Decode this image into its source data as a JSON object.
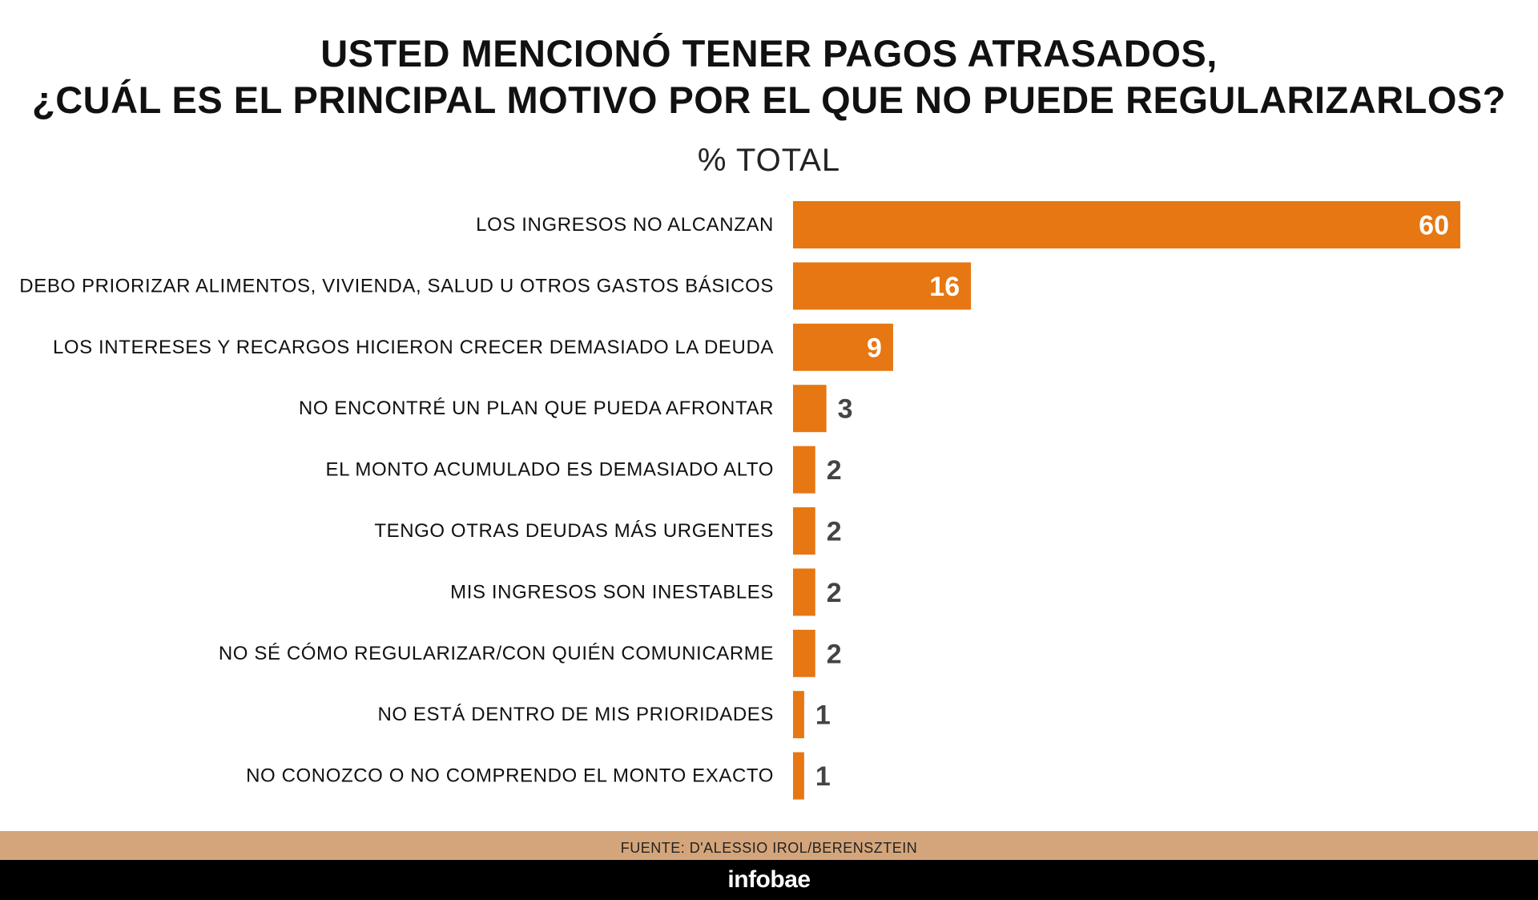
{
  "header": {
    "title_line1": "USTED MENCIONÓ TENER PAGOS ATRASADOS,",
    "title_line2": "¿CUÁL ES EL PRINCIPAL MOTIVO POR EL QUE NO PUEDE REGULARIZARLOS?",
    "subtitle": "% TOTAL"
  },
  "chart_data": {
    "type": "bar",
    "orientation": "horizontal",
    "title": "USTED MENCIONÓ TENER PAGOS ATRASADOS, ¿CUÁL ES EL PRINCIPAL MOTIVO POR EL QUE NO PUEDE REGULARIZARLOS?",
    "subtitle": "% TOTAL",
    "xlim": [
      0,
      60
    ],
    "grid": false,
    "legend": "none",
    "bar_color": "#E67712",
    "categories": [
      "LOS INGRESOS NO ALCANZAN",
      "DEBO PRIORIZAR ALIMENTOS, VIVIENDA, SALUD U OTROS GASTOS BÁSICOS",
      "LOS INTERESES Y RECARGOS HICIERON CRECER DEMASIADO LA DEUDA",
      "NO ENCONTRÉ UN PLAN QUE PUEDA AFRONTAR",
      "EL MONTO ACUMULADO ES DEMASIADO ALTO",
      "TENGO OTRAS DEUDAS MÁS URGENTES",
      "MIS INGRESOS SON INESTABLES",
      "NO SÉ CÓMO REGULARIZAR/CON QUIÉN COMUNICARME",
      "NO ESTÁ DENTRO DE MIS PRIORIDADES",
      "NO CONOZCO O NO COMPRENDO EL MONTO EXACTO"
    ],
    "values": [
      60,
      16,
      9,
      3,
      2,
      2,
      2,
      2,
      1,
      1
    ]
  },
  "footer": {
    "source": "FUENTE: D'ALESSIO IROL/BERENSZTEIN",
    "logo": "infobae",
    "source_band_color": "#D4A57A",
    "footer_color": "#000000"
  }
}
